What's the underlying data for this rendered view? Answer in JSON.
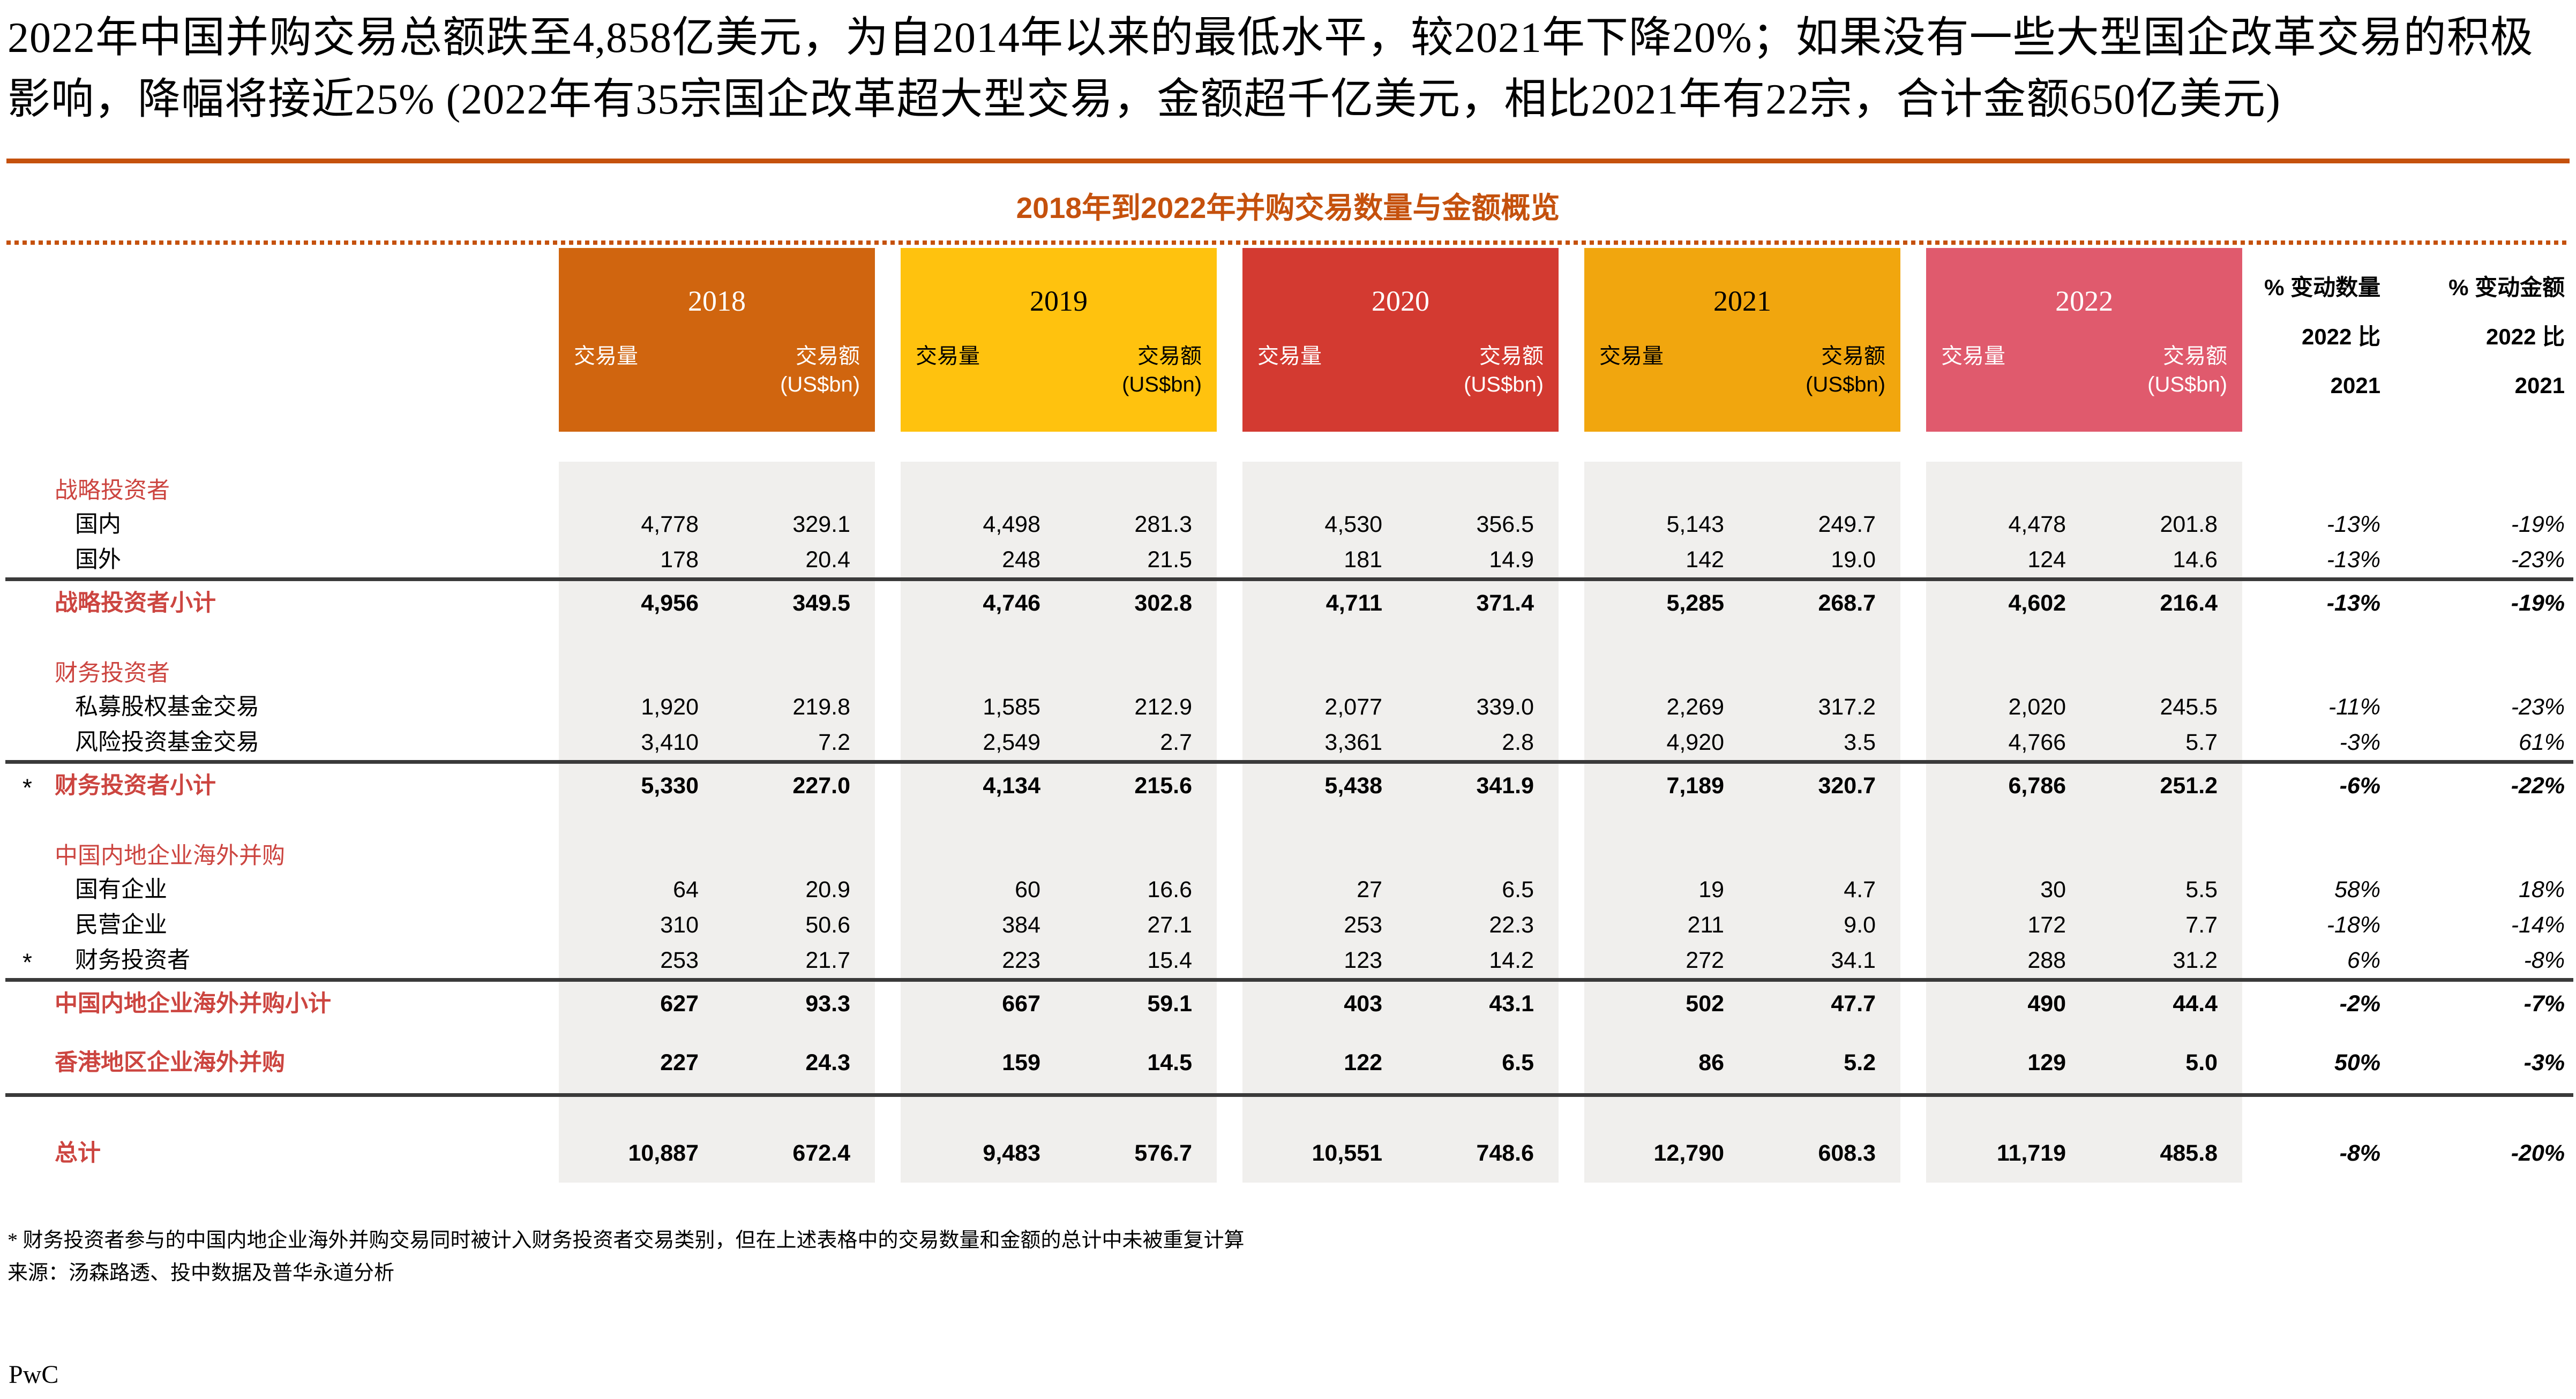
{
  "page": {
    "heading": "2022年中国并购交易总额跌至4,858亿美元，为自2014年以来的最低水平，较2021年下降20%；如果没有一些大型国企改革交易的积极影响，降幅将接近25% (2022年有35宗国企改革超大型交易，金额超千亿美元，相比2021年有22宗，合计金额650亿美元)",
    "footnotes": [
      "* 财务投资者参与的中国内地企业海外并购交易同时被计入财务投资者交易类别，但在上述表格中的交易数量和金额的总计中未被重复计算",
      "来源：汤森路透、投中数据及普华永道分析"
    ],
    "logo": "PwC",
    "accent_color": "#C5510D",
    "section_text_color": "#CC4540",
    "column_bg_color": "#F0EFED"
  },
  "table": {
    "title": "2018年到2022年并购交易数量与金额概览",
    "col_volume": "交易量",
    "col_amount": "交易额",
    "col_amount_unit": "(US$bn)",
    "years": [
      {
        "label": "2018",
        "bg": "#D0650F",
        "fg": "#FFFFFF"
      },
      {
        "label": "2019",
        "bg": "#FFC20E",
        "fg": "#000000"
      },
      {
        "label": "2020",
        "bg": "#D33A31",
        "fg": "#FFFFFF"
      },
      {
        "label": "2021",
        "bg": "#F1A60E",
        "fg": "#000000"
      },
      {
        "label": "2022",
        "bg": "#E05A6D",
        "fg": "#FFFFFF"
      }
    ],
    "pct_headers": [
      {
        "lines": [
          "% 变动数量",
          "2022 比",
          "2021"
        ]
      },
      {
        "lines": [
          "% 变动金额",
          "2022 比",
          "2021"
        ]
      }
    ]
  },
  "chart_data": {
    "type": "table",
    "title": "2018年到2022年并购交易数量与金额概览",
    "column_groups": [
      "2018",
      "2019",
      "2020",
      "2021",
      "2022"
    ],
    "columns_per_group": [
      "交易量",
      "交易额 (US$bn)"
    ],
    "change_columns": [
      "% 变动数量 2022 比 2021",
      "% 变动金额 2022 比 2021"
    ],
    "rows": [
      {
        "type": "section",
        "label": "战略投资者"
      },
      {
        "type": "data",
        "label": "国内",
        "values": [
          "4,778",
          "329.1",
          "4,498",
          "281.3",
          "4,530",
          "356.5",
          "5,143",
          "249.7",
          "4,478",
          "201.8"
        ],
        "pct": [
          "-13%",
          "-19%"
        ]
      },
      {
        "type": "data",
        "label": "国外",
        "values": [
          "178",
          "20.4",
          "248",
          "21.5",
          "181",
          "14.9",
          "142",
          "19.0",
          "124",
          "14.6"
        ],
        "pct": [
          "-13%",
          "-23%"
        ]
      },
      {
        "type": "subtotal",
        "label": "战略投资者小计",
        "values": [
          "4,956",
          "349.5",
          "4,746",
          "302.8",
          "4,711",
          "371.4",
          "5,285",
          "268.7",
          "4,602",
          "216.4"
        ],
        "pct": [
          "-13%",
          "-19%"
        ]
      },
      {
        "type": "section",
        "label": "财务投资者"
      },
      {
        "type": "data",
        "label": "私募股权基金交易",
        "values": [
          "1,920",
          "219.8",
          "1,585",
          "212.9",
          "2,077",
          "339.0",
          "2,269",
          "317.2",
          "2,020",
          "245.5"
        ],
        "pct": [
          "-11%",
          "-23%"
        ]
      },
      {
        "type": "data",
        "label": "风险投资基金交易",
        "values": [
          "3,410",
          "7.2",
          "2,549",
          "2.7",
          "3,361",
          "2.8",
          "4,920",
          "3.5",
          "4,766",
          "5.7"
        ],
        "pct": [
          "-3%",
          "61%"
        ]
      },
      {
        "type": "subtotal",
        "label": "财务投资者小计",
        "asterisk": true,
        "values": [
          "5,330",
          "227.0",
          "4,134",
          "215.6",
          "5,438",
          "341.9",
          "7,189",
          "320.7",
          "6,786",
          "251.2"
        ],
        "pct": [
          "-6%",
          "-22%"
        ]
      },
      {
        "type": "section",
        "label": "中国内地企业海外并购"
      },
      {
        "type": "data",
        "label": "国有企业",
        "values": [
          "64",
          "20.9",
          "60",
          "16.6",
          "27",
          "6.5",
          "19",
          "4.7",
          "30",
          "5.5"
        ],
        "pct": [
          "58%",
          "18%"
        ]
      },
      {
        "type": "data",
        "label": "民营企业",
        "values": [
          "310",
          "50.6",
          "384",
          "27.1",
          "253",
          "22.3",
          "211",
          "9.0",
          "172",
          "7.7"
        ],
        "pct": [
          "-18%",
          "-14%"
        ]
      },
      {
        "type": "data",
        "label": "财务投资者",
        "asterisk": true,
        "values": [
          "253",
          "21.7",
          "223",
          "15.4",
          "123",
          "14.2",
          "272",
          "34.1",
          "288",
          "31.2"
        ],
        "pct": [
          "6%",
          "-8%"
        ]
      },
      {
        "type": "subtotal",
        "label": "中国内地企业海外并购小计",
        "values": [
          "627",
          "93.3",
          "667",
          "59.1",
          "403",
          "43.1",
          "502",
          "47.7",
          "490",
          "44.4"
        ],
        "pct": [
          "-2%",
          "-7%"
        ]
      },
      {
        "type": "hk",
        "label": "香港地区企业海外并购",
        "values": [
          "227",
          "24.3",
          "159",
          "14.5",
          "122",
          "6.5",
          "86",
          "5.2",
          "129",
          "5.0"
        ],
        "pct": [
          "50%",
          "-3%"
        ]
      },
      {
        "type": "total",
        "label": "总计",
        "values": [
          "10,887",
          "672.4",
          "9,483",
          "576.7",
          "10,551",
          "748.6",
          "12,790",
          "608.3",
          "11,719",
          "485.8"
        ],
        "pct": [
          "-8%",
          "-20%"
        ]
      }
    ]
  }
}
